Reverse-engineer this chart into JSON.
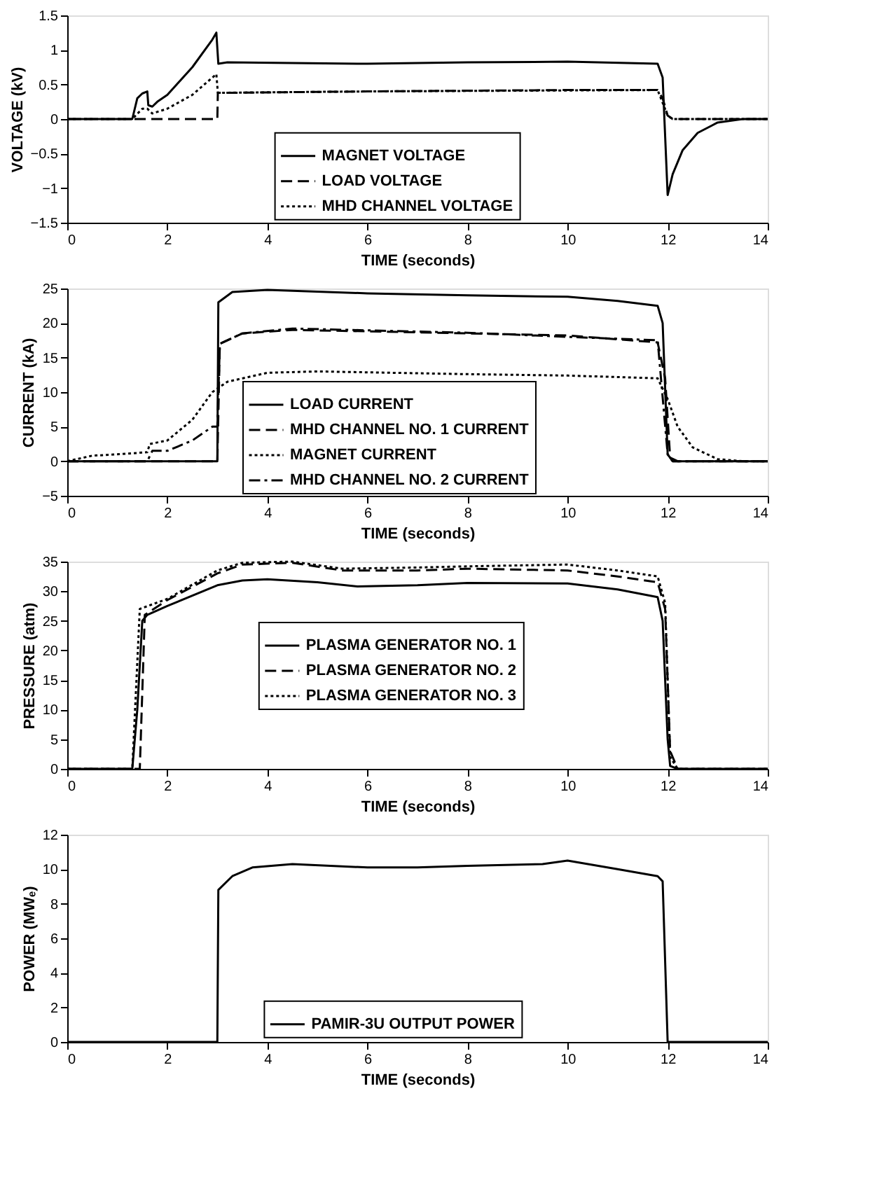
{
  "chart_data": [
    {
      "type": "line",
      "xlabel": "TIME (seconds)",
      "ylabel": "VOLTAGE (kV)",
      "xlim": [
        0,
        14
      ],
      "xticks": [
        0,
        2,
        4,
        6,
        8,
        10,
        12,
        14
      ],
      "ylim": [
        -1.5,
        1.5
      ],
      "yticks": [
        -1.5,
        -1,
        -0.5,
        0,
        0.5,
        1,
        1.5
      ],
      "grid": false,
      "legend": "bottom",
      "series": [
        {
          "name": "MAGNET VOLTAGE",
          "color": "#000000",
          "line_style": "solid",
          "x": [
            0,
            1.3,
            1.4,
            1.5,
            1.6,
            1.62,
            1.7,
            1.8,
            2,
            2.5,
            2.9,
            2.98,
            3.02,
            3.2,
            6,
            8,
            10,
            11.8,
            11.9,
            12,
            12.1,
            12.3,
            12.6,
            13,
            13.5,
            14
          ],
          "values": [
            0,
            0,
            0.3,
            0.37,
            0.4,
            0.2,
            0.18,
            0.25,
            0.35,
            0.75,
            1.15,
            1.25,
            0.8,
            0.82,
            0.8,
            0.82,
            0.83,
            0.8,
            0.6,
            -1.1,
            -0.8,
            -0.45,
            -0.2,
            -0.05,
            0,
            0
          ]
        },
        {
          "name": "LOAD VOLTAGE",
          "color": "#000000",
          "line_style": "dashed",
          "x": [
            0,
            1.4,
            3,
            3.01,
            3.3,
            6,
            10,
            11.8,
            11.9,
            12,
            12.1,
            14
          ],
          "values": [
            0,
            0,
            0,
            0.38,
            0.38,
            0.4,
            0.42,
            0.42,
            0.3,
            0.05,
            0,
            0
          ]
        },
        {
          "name": "MHD CHANNEL VOLTAGE",
          "color": "#000000",
          "line_style": "dotted",
          "x": [
            0,
            1.3,
            1.5,
            1.6,
            1.7,
            2,
            2.5,
            2.98,
            3.01,
            6,
            11.8,
            12,
            12.1,
            14
          ],
          "values": [
            0,
            0,
            0.15,
            0.15,
            0.08,
            0.15,
            0.35,
            0.65,
            0.38,
            0.4,
            0.42,
            0.05,
            0,
            0
          ]
        }
      ]
    },
    {
      "type": "line",
      "xlabel": "TIME (seconds)",
      "ylabel": "CURRENT (kA)",
      "xlim": [
        0,
        14
      ],
      "xticks": [
        0,
        2,
        4,
        6,
        8,
        10,
        12,
        14
      ],
      "ylim": [
        -5,
        25
      ],
      "yticks": [
        -5,
        0,
        5,
        10,
        15,
        20,
        25
      ],
      "grid": false,
      "legend": "bottom",
      "series": [
        {
          "name": "LOAD CURRENT",
          "color": "#000000",
          "line_style": "solid",
          "x": [
            0,
            3,
            3.02,
            3.3,
            4,
            6,
            8,
            10,
            11,
            11.8,
            11.9,
            12,
            12.1,
            14
          ],
          "values": [
            0,
            0,
            23,
            24.5,
            24.8,
            24.3,
            24,
            23.8,
            23.2,
            22.5,
            20,
            1,
            0,
            0
          ]
        },
        {
          "name": "MHD CHANNEL NO. 1 CURRENT",
          "color": "#000000",
          "line_style": "dashed",
          "x": [
            0,
            3,
            3.05,
            3.5,
            4.5,
            6,
            8,
            10,
            11.8,
            11.95,
            12.05,
            12.2,
            14
          ],
          "values": [
            0,
            0,
            17,
            18.5,
            19,
            18.8,
            18.5,
            18.2,
            17.2,
            12,
            0.5,
            0,
            0
          ]
        },
        {
          "name": "MAGNET CURRENT",
          "color": "#000000",
          "line_style": "dotted",
          "x": [
            0,
            0.5,
            1,
            1.6,
            1.65,
            2,
            2.5,
            2.9,
            3.2,
            4,
            5,
            8,
            10,
            11.8,
            12,
            12.2,
            12.5,
            13,
            13.5,
            14
          ],
          "values": [
            0,
            0.8,
            1,
            1.3,
            2.5,
            3,
            6,
            10,
            11.5,
            12.8,
            13,
            12.6,
            12.4,
            12,
            9,
            5,
            2,
            0.3,
            0,
            0
          ]
        },
        {
          "name": "MHD CHANNEL NO. 2 CURRENT",
          "color": "#000000",
          "line_style": "dashdot",
          "x": [
            0,
            1.6,
            1.7,
            2,
            2.5,
            2.9,
            3,
            3.05,
            3.5,
            4.5,
            8,
            10,
            11.8,
            12,
            12.1,
            14
          ],
          "values": [
            0,
            0,
            1.5,
            1.5,
            3,
            5,
            5,
            17,
            18.5,
            19.2,
            18.6,
            18,
            17.5,
            1,
            0,
            0
          ]
        }
      ]
    },
    {
      "type": "line",
      "xlabel": "TIME (seconds)",
      "ylabel": "PRESSURE (atm)",
      "xlim": [
        0,
        14
      ],
      "xticks": [
        0,
        2,
        4,
        6,
        8,
        10,
        12,
        14
      ],
      "ylim": [
        0,
        35
      ],
      "yticks": [
        0,
        5,
        10,
        15,
        20,
        25,
        30,
        35
      ],
      "grid": false,
      "legend": "center",
      "series": [
        {
          "name": "PLASMA GENERATOR NO. 1",
          "color": "#000000",
          "line_style": "solid",
          "x": [
            0,
            1.3,
            1.4,
            1.5,
            1.6,
            2,
            3,
            3.5,
            4,
            5,
            5.8,
            7,
            8,
            10,
            11,
            11.8,
            11.9,
            12,
            12.05,
            12.2,
            14
          ],
          "values": [
            0,
            0,
            10,
            25,
            26,
            27.5,
            31,
            31.8,
            32,
            31.5,
            30.8,
            31,
            31.4,
            31.3,
            30.3,
            29,
            25,
            5,
            0.5,
            0,
            0
          ]
        },
        {
          "name": "PLASMA GENERATOR NO. 2",
          "color": "#000000",
          "line_style": "dashed",
          "x": [
            0,
            1.45,
            1.55,
            2,
            3,
            3.5,
            4.5,
            5.5,
            7,
            8,
            10,
            11,
            11.8,
            11.95,
            12.05,
            12.2,
            14
          ],
          "values": [
            0,
            0,
            26,
            28.5,
            33,
            34.5,
            34.8,
            33.5,
            33.5,
            33.8,
            33.5,
            32.5,
            31.5,
            27,
            3,
            0,
            0
          ]
        },
        {
          "name": "PLASMA GENERATOR NO. 3",
          "color": "#000000",
          "line_style": "dotted",
          "x": [
            0,
            1.3,
            1.45,
            2,
            3,
            3.5,
            4.5,
            5.5,
            7,
            8,
            10,
            11,
            11.8,
            11.95,
            12.05,
            12.2,
            14
          ],
          "values": [
            0,
            0,
            27,
            28.7,
            33.5,
            34.8,
            35,
            33.8,
            34,
            34.2,
            34.5,
            33.5,
            32.5,
            28,
            2,
            0,
            0
          ]
        }
      ]
    },
    {
      "type": "line",
      "xlabel": "TIME (seconds)",
      "ylabel": "POWER (MWₑ)",
      "xlim": [
        0,
        14
      ],
      "xticks": [
        0,
        2,
        4,
        6,
        8,
        10,
        12,
        14
      ],
      "ylim": [
        0,
        12
      ],
      "yticks": [
        0,
        2,
        4,
        6,
        8,
        10,
        12
      ],
      "grid": false,
      "legend": "bottom",
      "series": [
        {
          "name": "PAMIR-3U OUTPUT POWER",
          "color": "#000000",
          "line_style": "solid",
          "x": [
            0,
            3,
            3.02,
            3.3,
            3.7,
            4.5,
            6,
            7,
            8,
            9.5,
            10,
            11,
            11.8,
            11.9,
            12,
            14
          ],
          "values": [
            0,
            0,
            8.8,
            9.6,
            10.1,
            10.3,
            10.1,
            10.1,
            10.2,
            10.3,
            10.5,
            10,
            9.6,
            9.3,
            0,
            0
          ]
        }
      ]
    }
  ]
}
